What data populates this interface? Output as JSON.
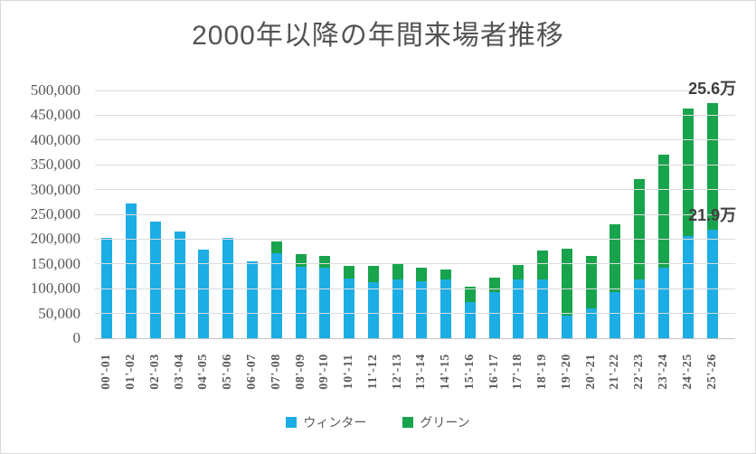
{
  "title": "2000年以降の年間来場者推移",
  "colors": {
    "winter": "#1CADE4",
    "green": "#18A44C",
    "gridline": "#DCDCDC",
    "axis_line": "#C3C3C3",
    "title_text": "#535353",
    "tick_text": "#595959",
    "annotation_text": "#3F3F3F"
  },
  "legend": {
    "position": "bottom",
    "items": [
      {
        "label": "ウィンター",
        "color": "#1CADE4"
      },
      {
        "label": "グリーン",
        "color": "#18A44C"
      }
    ]
  },
  "chart_data": {
    "type": "bar",
    "stacked": true,
    "title": "2000年以降の年間来場者推移",
    "xlabel": "",
    "ylabel": "",
    "ylim": [
      0,
      500000
    ],
    "grid": true,
    "legend_position": "bottom",
    "categories": [
      "00'-01",
      "01'-02",
      "02'-03",
      "03'-04",
      "04'-05",
      "05'-06",
      "06'-07",
      "07'-08",
      "08'-09",
      "09'-10",
      "10'-11",
      "11'-12",
      "12'-13",
      "13'-14",
      "14'-15",
      "15'-16",
      "16'-17",
      "17'-18",
      "18'-19",
      "19'-20",
      "20'-21",
      "21'-22",
      "22'-23",
      "23'-24",
      "24'-25",
      "25'-26"
    ],
    "series": [
      {
        "name": "ウィンター",
        "color": "#1CADE4",
        "values": [
          203000,
          272000,
          236000,
          216000,
          179000,
          202000,
          155000,
          171000,
          144000,
          143000,
          120000,
          114000,
          118000,
          115000,
          118000,
          73000,
          94000,
          119000,
          118000,
          45000,
          61000,
          93000,
          118000,
          143000,
          207000,
          219000
        ]
      },
      {
        "name": "グリーン",
        "color": "#18A44C",
        "values": [
          0,
          0,
          0,
          0,
          0,
          0,
          0,
          25000,
          26000,
          23000,
          26000,
          32000,
          33000,
          28000,
          21000,
          31000,
          29000,
          29000,
          59000,
          136000,
          105000,
          137000,
          204000,
          227000,
          256000,
          256000
        ]
      }
    ],
    "y_ticks": [
      {
        "value": 0,
        "label": "0"
      },
      {
        "value": 50000,
        "label": "50,000"
      },
      {
        "value": 100000,
        "label": "100,000"
      },
      {
        "value": 150000,
        "label": "150,000"
      },
      {
        "value": 200000,
        "label": "200,000"
      },
      {
        "value": 250000,
        "label": "250,000"
      },
      {
        "value": 300000,
        "label": "300,000"
      },
      {
        "value": 350000,
        "label": "350,000"
      },
      {
        "value": 400000,
        "label": "400,000"
      },
      {
        "value": 450000,
        "label": "450,000"
      },
      {
        "value": 500000,
        "label": "500,000"
      }
    ],
    "annotations": [
      {
        "text": "25.6万",
        "category_index": 25,
        "anchor_value": 475000
      },
      {
        "text": "21.9万",
        "category_index": 25,
        "anchor_value": 219000
      }
    ]
  }
}
